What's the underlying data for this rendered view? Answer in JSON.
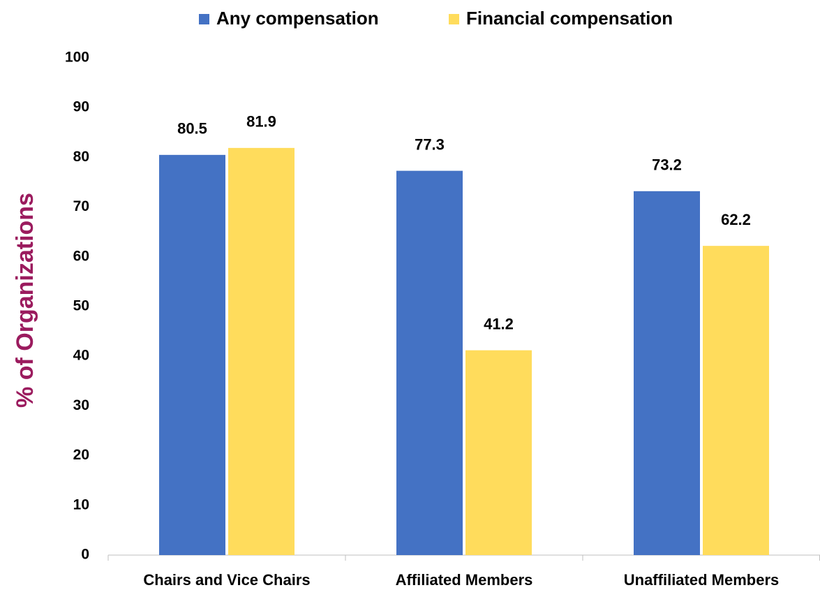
{
  "chart_data": {
    "type": "bar",
    "ylabel": "% of Organizations",
    "categories": [
      "Chairs and Vice Chairs",
      "Affiliated Members",
      "Unaffiliated Members"
    ],
    "series": [
      {
        "name": "Any compensation",
        "color": "#4472c4",
        "values": [
          80.5,
          77.3,
          73.2
        ]
      },
      {
        "name": "Financial compensation",
        "color": "#ffdc5c",
        "values": [
          81.9,
          41.2,
          62.2
        ]
      }
    ],
    "ylim": [
      0,
      100
    ],
    "yticks": [
      0,
      10,
      20,
      30,
      40,
      50,
      60,
      70,
      80,
      90,
      100
    ],
    "grid": false,
    "legend": "top"
  }
}
